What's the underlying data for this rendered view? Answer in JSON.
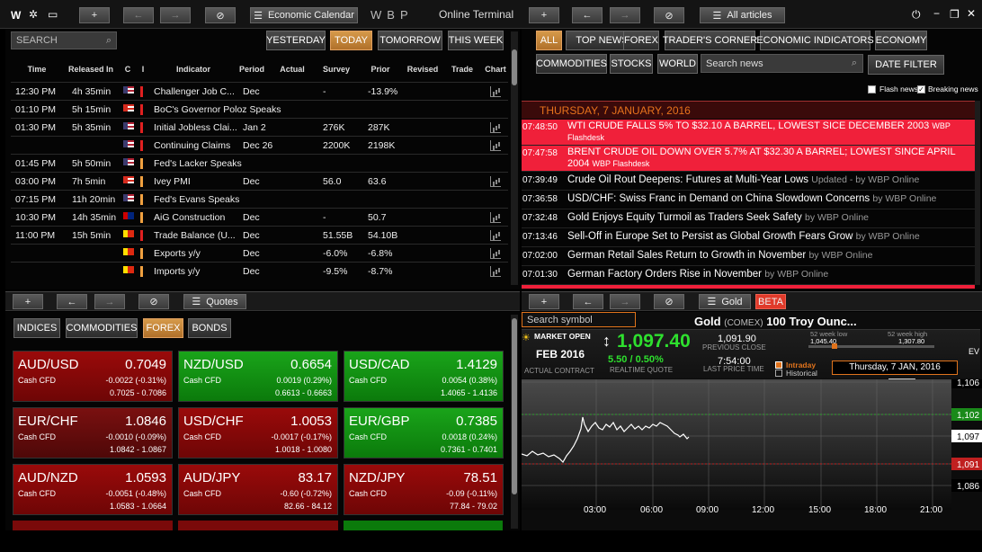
{
  "app": {
    "title": "Online Terminal",
    "logo": "WBP"
  },
  "top": {
    "econ_tab": "Economic Calendar",
    "articles_tab": "All articles",
    "quotes_tab": "Quotes",
    "gold_tab": "Gold",
    "beta": "BETA"
  },
  "calendar": {
    "search_placeholder": "SEARCH",
    "day_buttons": [
      "YESTERDAY",
      "TODAY",
      "TOMORROW",
      "THIS WEEK"
    ],
    "headers": [
      "Time",
      "Released In",
      "C",
      "I",
      "Indicator",
      "Period",
      "Actual",
      "Survey",
      "Prior",
      "Revised",
      "Trade",
      "Chart"
    ],
    "rows": [
      {
        "time": "12:30 PM",
        "rel": "4h 35min",
        "flag": "us",
        "imp": "red",
        "ind": "Challenger Job C...",
        "period": "Dec",
        "survey": "-",
        "prior": "-13.9%",
        "chart": true
      },
      {
        "time": "01:10 PM",
        "rel": "5h 15min",
        "flag": "ca",
        "imp": "red",
        "ind": "BoC's Governor Poloz Speaks",
        "period": "",
        "survey": "",
        "prior": "",
        "chart": false
      },
      {
        "time": "01:30 PM",
        "rel": "5h 35min",
        "flag": "us",
        "imp": "red",
        "ind": "Initial Jobless Clai...",
        "period": "Jan 2",
        "survey": "276K",
        "prior": "287K",
        "chart": true
      },
      {
        "time": "",
        "rel": "",
        "flag": "us",
        "imp": "red",
        "ind": "Continuing Claims",
        "period": "Dec 26",
        "survey": "2200K",
        "prior": "2198K",
        "chart": true
      },
      {
        "time": "01:45 PM",
        "rel": "5h 50min",
        "flag": "us",
        "imp": "orange",
        "ind": "Fed's Lacker Speaks",
        "period": "",
        "survey": "",
        "prior": "",
        "chart": false
      },
      {
        "time": "03:00 PM",
        "rel": "7h 5min",
        "flag": "ca",
        "imp": "orange",
        "ind": "Ivey PMI",
        "period": "Dec",
        "survey": "56.0",
        "prior": "63.6",
        "chart": true
      },
      {
        "time": "07:15 PM",
        "rel": "11h 20min",
        "flag": "us",
        "imp": "orange",
        "ind": "Fed's Evans Speaks",
        "period": "",
        "survey": "",
        "prior": "",
        "chart": false
      },
      {
        "time": "10:30 PM",
        "rel": "14h 35min",
        "flag": "au",
        "imp": "orange",
        "ind": "AiG Construction",
        "period": "Dec",
        "survey": "-",
        "prior": "50.7",
        "chart": true
      },
      {
        "time": "11:00 PM",
        "rel": "15h 5min",
        "flag": "cn",
        "imp": "red",
        "ind": "Trade Balance (U...",
        "period": "Dec",
        "survey": "51.55B",
        "prior": "54.10B",
        "chart": true
      },
      {
        "time": "",
        "rel": "",
        "flag": "cn",
        "imp": "orange",
        "ind": "Exports y/y",
        "period": "Dec",
        "survey": "-6.0%",
        "prior": "-6.8%",
        "chart": true
      },
      {
        "time": "",
        "rel": "",
        "flag": "cn",
        "imp": "orange",
        "ind": "Imports y/y",
        "period": "Dec",
        "survey": "-9.5%",
        "prior": "-8.7%",
        "chart": true
      }
    ]
  },
  "news": {
    "filters": [
      "ALL",
      "TOP NEWS",
      "FOREX",
      "TRADER'S CORNER",
      "ECONOMIC INDICATORS",
      "ECONOMY",
      "COMMODITIES",
      "STOCKS",
      "WORLD"
    ],
    "search_placeholder": "Search news",
    "date_filter": "DATE FILTER",
    "flash_label": "Flash news",
    "breaking_label": "Breaking news",
    "date_header": "THURSDAY, 7 JANUARY, 2016",
    "items": [
      {
        "time": "07:48:50",
        "headline": "WTI CRUDE FALLS 5% TO $32.10 A BARREL, LOWEST SICE DECEMBER 2003",
        "src": "WBP Flashdesk",
        "flash": true
      },
      {
        "time": "07:47:58",
        "headline": "BRENT CRUDE OIL DOWN OVER 5.7% AT $32.30 A BARREL; LOWEST SINCE APRIL 2004",
        "src": "WBP Flashdesk",
        "flash": true
      },
      {
        "time": "07:39:49",
        "headline": "Crude Oil Rout Deepens: Futures at Multi-Year Lows",
        "src": "Updated - by WBP Online",
        "flash": false
      },
      {
        "time": "07:36:58",
        "headline": "USD/CHF: Swiss Franc in Demand on China Slowdown Concerns",
        "src": "by WBP Online",
        "flash": false
      },
      {
        "time": "07:32:48",
        "headline": "Gold Enjoys Equity Turmoil as Traders Seek Safety",
        "src": "by WBP Online",
        "flash": false
      },
      {
        "time": "07:13:46",
        "headline": "Sell-Off in Europe Set to Persist as Global Growth Fears Grow",
        "src": "by WBP Online",
        "flash": false
      },
      {
        "time": "07:02:00",
        "headline": "German Retail Sales Return to Growth in November",
        "src": "by WBP Online",
        "flash": false
      },
      {
        "time": "07:01:30",
        "headline": "German Factory Orders Rise in November",
        "src": "by WBP Online",
        "flash": false
      }
    ]
  },
  "quotes": {
    "tabs": [
      "INDICES",
      "COMMODITIES",
      "FOREX",
      "BONDS"
    ],
    "tiles": [
      {
        "pair": "AUD/USD",
        "price": "0.7049",
        "sub": "Cash CFD",
        "chg": "-0.0022 (-0.31%)",
        "rng": "0.7025 - 0.7086",
        "color": "red"
      },
      {
        "pair": "NZD/USD",
        "price": "0.6654",
        "sub": "Cash CFD",
        "chg": "0.0019 (0.29%)",
        "rng": "0.6613 - 0.6663",
        "color": "green"
      },
      {
        "pair": "USD/CAD",
        "price": "1.4129",
        "sub": "Cash CFD",
        "chg": "0.0054 (0.38%)",
        "rng": "1.4065 - 1.4136",
        "color": "green"
      },
      {
        "pair": "EUR/CHF",
        "price": "1.0846",
        "sub": "Cash CFD",
        "chg": "-0.0010 (-0.09%)",
        "rng": "1.0842 - 1.0867",
        "color": "dred"
      },
      {
        "pair": "USD/CHF",
        "price": "1.0053",
        "sub": "Cash CFD",
        "chg": "-0.0017 (-0.17%)",
        "rng": "1.0018 - 1.0080",
        "color": "red"
      },
      {
        "pair": "EUR/GBP",
        "price": "0.7385",
        "sub": "Cash CFD",
        "chg": "0.0018 (0.24%)",
        "rng": "0.7361 - 0.7401",
        "color": "green"
      },
      {
        "pair": "AUD/NZD",
        "price": "1.0593",
        "sub": "Cash CFD",
        "chg": "-0.0051 (-0.48%)",
        "rng": "1.0583 - 1.0664",
        "color": "red"
      },
      {
        "pair": "AUD/JPY",
        "price": "83.17",
        "sub": "Cash CFD",
        "chg": "-0.60 (-0.72%)",
        "rng": "82.66 - 84.12",
        "color": "red"
      },
      {
        "pair": "NZD/JPY",
        "price": "78.51",
        "sub": "Cash CFD",
        "chg": "-0.09 (-0.11%)",
        "rng": "77.84 - 79.02",
        "color": "red"
      }
    ]
  },
  "gold": {
    "search_placeholder": "Search symbol",
    "title": "Gold",
    "exchange": "(COMEX)",
    "contract": "100 Troy Ounc...",
    "market_open": "MARKET OPEN",
    "contract_month": "FEB 2016",
    "actual_contract": "ACTUAL CONTRACT",
    "price": "1,097.40",
    "change": "5.50 / 0.50%",
    "realtime": "REALTIME QUOTE",
    "prev_close": "1,091.90",
    "prev_close_label": "PREVIOUS CLOSE",
    "last_time": "7:54:00",
    "last_time_label": "LAST PRICE TIME",
    "wk_low_label": "52 week low",
    "wk_low": "1,045.40",
    "wk_high_label": "52 week high",
    "wk_high": "1,307.80",
    "intraday": "Intraday",
    "historical": "Historical",
    "chart_date": "Thursday, 7 JAN, 2016",
    "ev": "EV",
    "y_labels": [
      "1,106",
      "1,102",
      "1,097",
      "1,091",
      "1,086"
    ],
    "x_labels": [
      "03:00",
      "06:00",
      "09:00",
      "12:00",
      "15:00",
      "18:00",
      "21:00"
    ]
  }
}
